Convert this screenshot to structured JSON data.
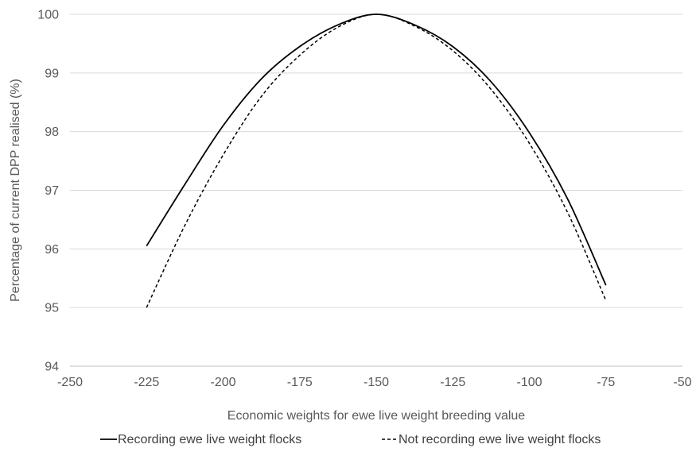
{
  "chart_data": {
    "type": "line",
    "title": "",
    "xlabel": "Economic weights for ewe live weight breeding value",
    "ylabel": "Percentage of current DPP realised (%)",
    "xlim": [
      -250,
      -50
    ],
    "ylim": [
      94,
      100
    ],
    "x_ticks": [
      "-250",
      "-225",
      "-200",
      "-175",
      "-150",
      "-125",
      "-100",
      "-75",
      "-50"
    ],
    "y_ticks": [
      "94",
      "95",
      "96",
      "97",
      "98",
      "99",
      "100"
    ],
    "grid": "horizontal",
    "legend_position": "bottom",
    "series": [
      {
        "name": "Recording ewe live weight flocks",
        "style": "solid",
        "color": "#000000",
        "points": [
          [
            -225,
            96.05
          ],
          [
            -212.5,
            97.1
          ],
          [
            -200,
            98.1
          ],
          [
            -187.5,
            98.9
          ],
          [
            -175,
            99.45
          ],
          [
            -162.5,
            99.82
          ],
          [
            -150,
            100.0
          ],
          [
            -137.5,
            99.82
          ],
          [
            -125,
            99.45
          ],
          [
            -112.5,
            98.85
          ],
          [
            -100,
            97.98
          ],
          [
            -87.5,
            96.85
          ],
          [
            -75,
            95.38
          ]
        ]
      },
      {
        "name": "Not recording ewe live weight flocks",
        "style": "dashed",
        "color": "#000000",
        "points": [
          [
            -225,
            95.0
          ],
          [
            -212.5,
            96.4
          ],
          [
            -200,
            97.6
          ],
          [
            -187.5,
            98.6
          ],
          [
            -175,
            99.3
          ],
          [
            -162.5,
            99.78
          ],
          [
            -150,
            100.0
          ],
          [
            -137.5,
            99.8
          ],
          [
            -125,
            99.38
          ],
          [
            -112.5,
            98.72
          ],
          [
            -100,
            97.8
          ],
          [
            -87.5,
            96.62
          ],
          [
            -75,
            95.12
          ]
        ]
      }
    ]
  }
}
